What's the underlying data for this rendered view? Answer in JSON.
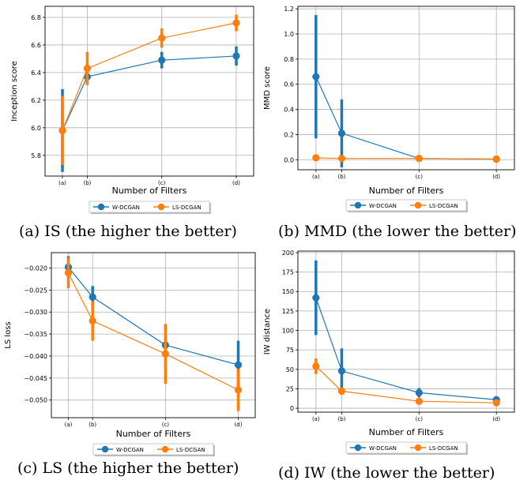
{
  "colors": {
    "w_dcgan": "#1f77b4",
    "ls_dcgan": "#ff7f0e",
    "grid": "#b0b0b0"
  },
  "chart_data": [
    {
      "type": "line",
      "caption": "(a) IS (the higher the better)",
      "xlabel": "Number of Filters",
      "ylabel": "Inception score",
      "categories": [
        "(a)",
        "(b)",
        "(c)",
        "(d)"
      ],
      "x": [
        0,
        1,
        4,
        7
      ],
      "ylim": [
        5.65,
        6.88
      ],
      "yticks": [
        5.8,
        6.0,
        6.2,
        6.4,
        6.6,
        6.8
      ],
      "ytick_labels": [
        "5.8",
        "6.0",
        "6.2",
        "6.4",
        "6.6",
        "6.8"
      ],
      "grid": true,
      "legend": "bottom-center",
      "series": [
        {
          "name": "W-DCGAN",
          "color": "#1f77b4",
          "values": [
            5.98,
            6.37,
            6.49,
            6.52
          ],
          "err": [
            0.3,
            0.06,
            0.06,
            0.07
          ]
        },
        {
          "name": "LS-DCGAN",
          "color": "#ff7f0e",
          "values": [
            5.98,
            6.43,
            6.65,
            6.76
          ],
          "err": [
            0.25,
            0.12,
            0.07,
            0.06
          ]
        }
      ]
    },
    {
      "type": "line",
      "caption": "(b) MMD (the lower the better)",
      "xlabel": "Number of Filters",
      "ylabel": "MMD score",
      "categories": [
        "(a)",
        "(b)",
        "(c)",
        "(d)"
      ],
      "x": [
        0,
        1,
        4,
        7
      ],
      "ylim": [
        -0.08,
        1.22
      ],
      "yticks": [
        0.0,
        0.2,
        0.4,
        0.6,
        0.8,
        1.0,
        1.2
      ],
      "ytick_labels": [
        "0.0",
        "0.2",
        "0.4",
        "0.6",
        "0.8",
        "1.0",
        "1.2"
      ],
      "grid": true,
      "legend": "bottom-center",
      "series": [
        {
          "name": "W-DCGAN",
          "color": "#1f77b4",
          "values": [
            0.66,
            0.21,
            0.01,
            0.005
          ],
          "err": [
            0.49,
            0.27,
            0.005,
            0.005
          ]
        },
        {
          "name": "LS-DCGAN",
          "color": "#ff7f0e",
          "values": [
            0.015,
            0.01,
            0.01,
            0.005
          ],
          "err": [
            0.01,
            0.005,
            0.005,
            0.005
          ]
        }
      ]
    },
    {
      "type": "line",
      "caption": "(c) LS (the higher the better)",
      "xlabel": "Number of Filters",
      "ylabel": "LS loss",
      "categories": [
        "(a)",
        "(b)",
        "(c)",
        "(d)"
      ],
      "x": [
        0,
        1,
        4,
        7
      ],
      "ylim": [
        -0.054,
        -0.0165
      ],
      "yticks": [
        -0.05,
        -0.045,
        -0.04,
        -0.035,
        -0.03,
        -0.025,
        -0.02
      ],
      "ytick_labels": [
        "−0.050",
        "−0.045",
        "−0.040",
        "−0.035",
        "−0.030",
        "−0.025",
        "−0.020"
      ],
      "grid": true,
      "legend": "bottom-center",
      "series": [
        {
          "name": "W-DCGAN",
          "color": "#1f77b4",
          "values": [
            -0.0198,
            -0.0266,
            -0.0375,
            -0.042
          ],
          "err": [
            0.0025,
            0.0025,
            0.0015,
            0.0055
          ]
        },
        {
          "name": "LS-DCGAN",
          "color": "#ff7f0e",
          "values": [
            -0.0211,
            -0.032,
            -0.0395,
            -0.0477
          ],
          "err": [
            0.0035,
            0.0045,
            0.0068,
            0.0048
          ]
        }
      ]
    },
    {
      "type": "line",
      "caption": "(d) IW (the lower the better)",
      "xlabel": "Number of Filters",
      "ylabel": "IW distance",
      "categories": [
        "(a)",
        "(b)",
        "(c)",
        "(d)"
      ],
      "x": [
        0,
        1,
        4,
        7
      ],
      "ylim": [
        -5,
        202
      ],
      "yticks": [
        0,
        25,
        50,
        75,
        100,
        125,
        150,
        175,
        200
      ],
      "ytick_labels": [
        "0",
        "25",
        "50",
        "75",
        "100",
        "125",
        "150",
        "175",
        "200"
      ],
      "grid": true,
      "legend": "bottom-center",
      "series": [
        {
          "name": "W-DCGAN",
          "color": "#1f77b4",
          "values": [
            142,
            48,
            20,
            11
          ],
          "err": [
            48,
            29,
            6,
            3
          ]
        },
        {
          "name": "LS-DCGAN",
          "color": "#ff7f0e",
          "values": [
            54,
            22,
            9,
            7
          ],
          "err": [
            10,
            5,
            3,
            2
          ]
        }
      ]
    }
  ]
}
